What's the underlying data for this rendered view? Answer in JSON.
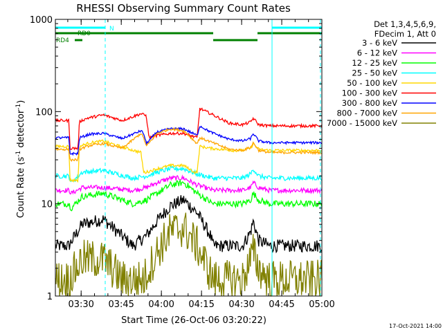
{
  "chart_data": {
    "type": "line",
    "title": "RHESSI Observing Summary Count Rates",
    "xlabel": "Start Time (26-Oct-06 03:20:22)",
    "ylabel_main": "Count Rate (s",
    "ylabel_exp1": "-1",
    "ylabel_mid": " detector",
    "ylabel_exp2": "-1",
    "ylabel_end": ")",
    "y_scale": "log",
    "xlim": [
      "03:20:22",
      "05:00:00"
    ],
    "ylim": [
      1,
      1000
    ],
    "x_ticks": [
      "03:30",
      "03:45",
      "04:00",
      "04:15",
      "04:30",
      "04:45",
      "05:00"
    ],
    "y_ticks": [
      "1",
      "10",
      "100",
      "1000"
    ],
    "legend_header": [
      "Det 1,3,4,5,6,9,",
      "FDecim 1, Att 0"
    ],
    "legend_placement": "right",
    "timestamp": "17-Oct-2021 14:00",
    "flags": {
      "labels": [
        "N",
        "RD0",
        "RD4"
      ],
      "N_color": "#00ffff",
      "RD_color": "#008000"
    },
    "series": [
      {
        "name": "3 - 6 keV",
        "color": "#000000",
        "base": 3.5,
        "noise": 0.16,
        "knots": [
          [
            0,
            3.5
          ],
          [
            5,
            3.5
          ],
          [
            6,
            3.9
          ],
          [
            10,
            6.0
          ],
          [
            18,
            6.8
          ],
          [
            29,
            3.5
          ],
          [
            34,
            4.5
          ],
          [
            38,
            6.5
          ],
          [
            43,
            9.5
          ],
          [
            48,
            11
          ],
          [
            53,
            8
          ],
          [
            58,
            4.5
          ],
          [
            59,
            3.5
          ],
          [
            70,
            3.5
          ],
          [
            73,
            5
          ],
          [
            74,
            6.5
          ],
          [
            76,
            4
          ],
          [
            80,
            3.5
          ]
        ]
      },
      {
        "name": "6 - 12 keV",
        "color": "#ff00ff",
        "base": 14,
        "noise": 0.06,
        "knots": [
          [
            0,
            14
          ],
          [
            5,
            14
          ],
          [
            6,
            13
          ],
          [
            10,
            15
          ],
          [
            18,
            15
          ],
          [
            29,
            14
          ],
          [
            34,
            15
          ],
          [
            38,
            17
          ],
          [
            43,
            19
          ],
          [
            48,
            19
          ],
          [
            53,
            16
          ],
          [
            59,
            14
          ],
          [
            70,
            14
          ],
          [
            73,
            15
          ],
          [
            74,
            17
          ],
          [
            76,
            15
          ],
          [
            80,
            14
          ]
        ]
      },
      {
        "name": "12 - 25 keV",
        "color": "#00ff00",
        "base": 10,
        "noise": 0.08,
        "knots": [
          [
            0,
            10
          ],
          [
            5,
            10
          ],
          [
            6,
            9
          ],
          [
            10,
            12
          ],
          [
            18,
            13
          ],
          [
            29,
            10
          ],
          [
            34,
            11
          ],
          [
            38,
            13
          ],
          [
            43,
            16
          ],
          [
            48,
            17
          ],
          [
            53,
            13
          ],
          [
            59,
            10
          ],
          [
            70,
            10
          ],
          [
            73,
            11
          ],
          [
            74,
            13
          ],
          [
            76,
            11
          ],
          [
            80,
            10
          ]
        ]
      },
      {
        "name": "25 - 50 keV",
        "color": "#00ffff",
        "base": 20,
        "noise": 0.06,
        "knots": [
          [
            0,
            20
          ],
          [
            5,
            20
          ],
          [
            6,
            17
          ],
          [
            10,
            22
          ],
          [
            18,
            23
          ],
          [
            29,
            19
          ],
          [
            34,
            20
          ],
          [
            38,
            22
          ],
          [
            43,
            24
          ],
          [
            48,
            24
          ],
          [
            53,
            21
          ],
          [
            59,
            19
          ],
          [
            70,
            19
          ],
          [
            73,
            21
          ],
          [
            74,
            24
          ],
          [
            76,
            20
          ],
          [
            80,
            19
          ]
        ]
      },
      {
        "name": "50 - 100 keV",
        "color": "#ffd700",
        "base": 42,
        "noise": 0.035,
        "knots": [
          [
            0,
            42
          ],
          [
            5,
            42
          ],
          [
            5.5,
            18
          ],
          [
            8.5,
            18
          ],
          [
            9,
            42
          ],
          [
            13,
            46
          ],
          [
            18,
            48
          ],
          [
            24,
            42
          ],
          [
            32,
            36
          ],
          [
            33,
            22
          ],
          [
            34,
            22
          ],
          [
            38,
            24
          ],
          [
            43,
            26
          ],
          [
            48,
            26
          ],
          [
            52,
            22
          ],
          [
            53,
            22
          ],
          [
            54,
            42
          ],
          [
            58,
            40
          ],
          [
            66,
            38
          ],
          [
            70,
            38
          ],
          [
            73,
            40
          ],
          [
            74,
            45
          ],
          [
            76,
            39
          ],
          [
            80,
            38
          ]
        ]
      },
      {
        "name": "100 - 300 keV",
        "color": "#ff0000",
        "base": 75,
        "noise": 0.035,
        "knots": [
          [
            0,
            80
          ],
          [
            5,
            80
          ],
          [
            5.5,
            40
          ],
          [
            8.5,
            40
          ],
          [
            9,
            78
          ],
          [
            12,
            85
          ],
          [
            18,
            92
          ],
          [
            25,
            80
          ],
          [
            32,
            95
          ],
          [
            34,
            90
          ],
          [
            35,
            52
          ],
          [
            38,
            55
          ],
          [
            43,
            58
          ],
          [
            48,
            58
          ],
          [
            53,
            52
          ],
          [
            54,
            108
          ],
          [
            58,
            95
          ],
          [
            65,
            75
          ],
          [
            70,
            72
          ],
          [
            73,
            77
          ],
          [
            74,
            85
          ],
          [
            76,
            72
          ],
          [
            80,
            70
          ]
        ]
      },
      {
        "name": "300 - 800 keV",
        "color": "#0000ff",
        "base": 52,
        "noise": 0.03,
        "knots": [
          [
            0,
            52
          ],
          [
            5,
            52
          ],
          [
            5.5,
            35
          ],
          [
            8.5,
            35
          ],
          [
            9,
            52
          ],
          [
            13,
            57
          ],
          [
            18,
            58
          ],
          [
            25,
            51
          ],
          [
            32,
            62
          ],
          [
            33,
            58
          ],
          [
            34,
            45
          ],
          [
            38,
            60
          ],
          [
            43,
            65
          ],
          [
            48,
            65
          ],
          [
            53,
            55
          ],
          [
            54,
            70
          ],
          [
            58,
            60
          ],
          [
            65,
            50
          ],
          [
            70,
            48
          ],
          [
            73,
            51
          ],
          [
            74,
            58
          ],
          [
            76,
            48
          ],
          [
            80,
            46
          ]
        ]
      },
      {
        "name": "800 - 7000 keV",
        "color": "#ffa500",
        "base": 38,
        "noise": 0.03,
        "knots": [
          [
            0,
            39
          ],
          [
            5,
            39
          ],
          [
            5.5,
            30
          ],
          [
            8.5,
            30
          ],
          [
            9,
            39
          ],
          [
            13,
            43
          ],
          [
            18,
            45
          ],
          [
            25,
            40
          ],
          [
            32,
            58
          ],
          [
            33,
            52
          ],
          [
            34,
            42
          ],
          [
            38,
            58
          ],
          [
            43,
            65
          ],
          [
            48,
            62
          ],
          [
            53,
            45
          ],
          [
            54,
            52
          ],
          [
            58,
            47
          ],
          [
            65,
            39
          ],
          [
            70,
            38
          ],
          [
            73,
            41
          ],
          [
            74,
            46
          ],
          [
            76,
            38
          ],
          [
            80,
            36
          ]
        ]
      },
      {
        "name": "7000 - 15000 keV",
        "color": "#808000",
        "base": 2,
        "noise": 0.5,
        "knots": [
          [
            0,
            1.5
          ],
          [
            5,
            1.5
          ],
          [
            10,
            2.5
          ],
          [
            18,
            2.5
          ],
          [
            25,
            1.5
          ],
          [
            33,
            1.5
          ],
          [
            38,
            3
          ],
          [
            43,
            5
          ],
          [
            48,
            5.5
          ],
          [
            53,
            3.5
          ],
          [
            59,
            1.5
          ],
          [
            70,
            1.5
          ],
          [
            73,
            2.5
          ],
          [
            74,
            3
          ],
          [
            76,
            2
          ],
          [
            80,
            1.5
          ]
        ]
      }
    ]
  }
}
